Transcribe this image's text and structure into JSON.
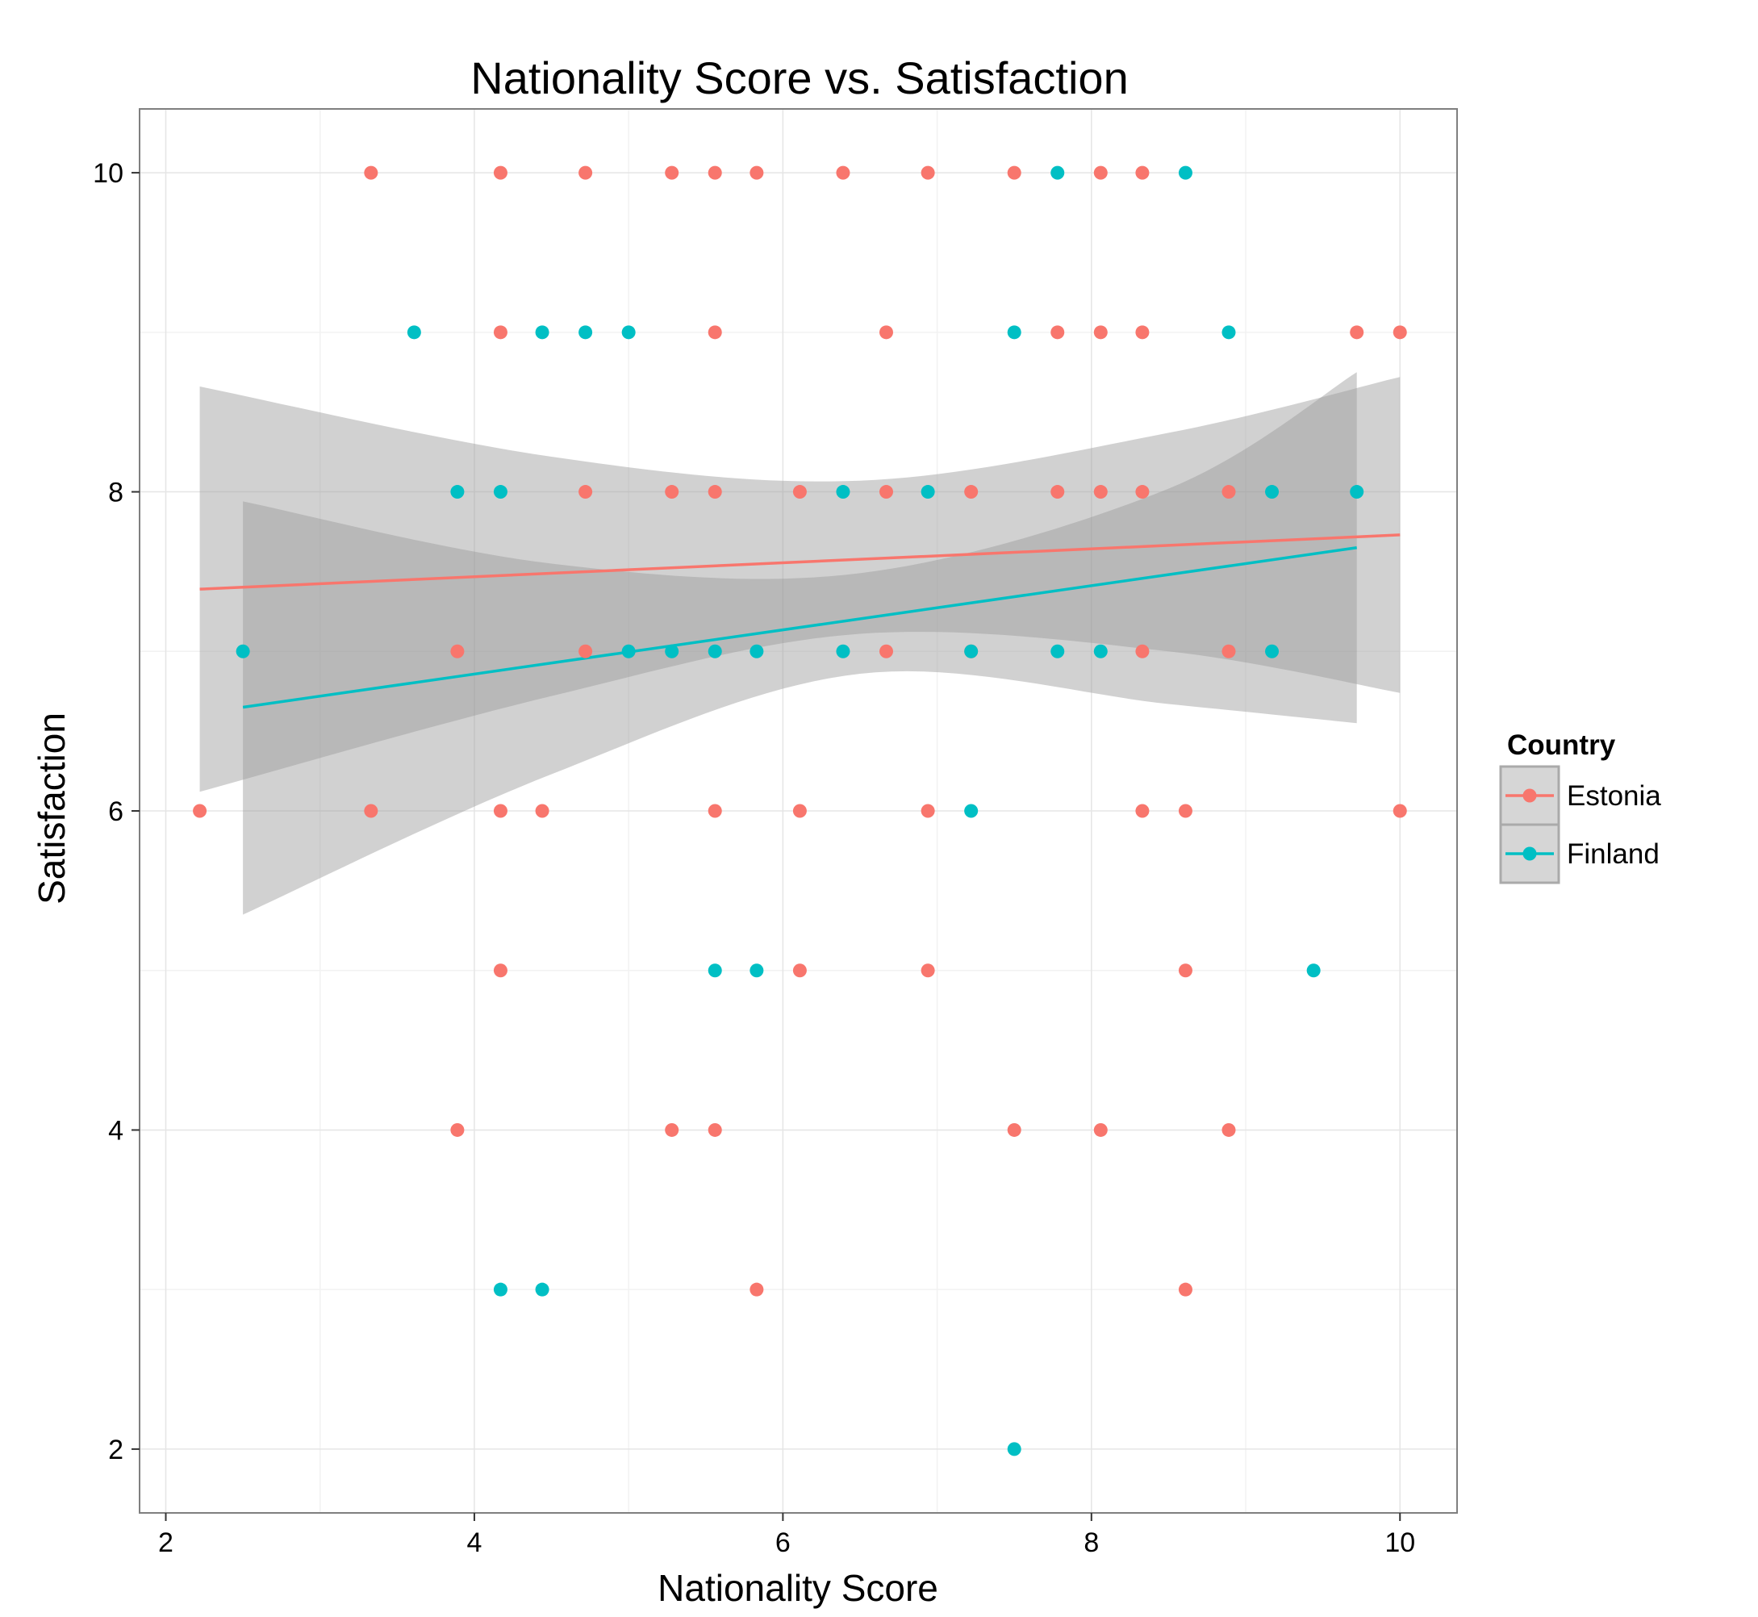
{
  "chart_data": {
    "type": "scatter",
    "title": "Nationality Score vs. Satisfaction",
    "xlabel": "Nationality Score",
    "ylabel": "Satisfaction",
    "xlim": [
      1.83,
      10.37
    ],
    "ylim": [
      1.6,
      10.4
    ],
    "x_ticks": [
      2,
      4,
      6,
      8,
      10
    ],
    "y_ticks": [
      2,
      4,
      6,
      8,
      10
    ],
    "grid": true,
    "legend": {
      "title": "Country",
      "placement": "right",
      "entries": [
        "Estonia",
        "Finland"
      ]
    },
    "colors": {
      "Estonia": "#F8766D",
      "Finland": "#00BFC4",
      "ribbon": "#999999",
      "panel_border": "#7f7f7f",
      "grid": "#e5e5e5"
    },
    "series": [
      {
        "name": "Estonia",
        "points": [
          [
            3.33,
            10
          ],
          [
            4.17,
            10
          ],
          [
            4.72,
            10
          ],
          [
            5.28,
            10
          ],
          [
            5.56,
            10
          ],
          [
            5.83,
            10
          ],
          [
            6.39,
            10
          ],
          [
            6.94,
            10
          ],
          [
            7.5,
            10
          ],
          [
            8.06,
            10
          ],
          [
            8.33,
            10
          ],
          [
            4.17,
            9
          ],
          [
            5.56,
            9
          ],
          [
            6.67,
            9
          ],
          [
            7.78,
            9
          ],
          [
            8.06,
            9
          ],
          [
            8.33,
            9
          ],
          [
            9.72,
            9
          ],
          [
            10.0,
            9
          ],
          [
            4.72,
            8
          ],
          [
            5.28,
            8
          ],
          [
            5.56,
            8
          ],
          [
            6.11,
            8
          ],
          [
            6.67,
            8
          ],
          [
            7.22,
            8
          ],
          [
            7.78,
            8
          ],
          [
            8.06,
            8
          ],
          [
            8.33,
            8
          ],
          [
            8.89,
            8
          ],
          [
            3.89,
            7
          ],
          [
            4.72,
            7
          ],
          [
            6.67,
            7
          ],
          [
            7.22,
            7
          ],
          [
            8.33,
            7
          ],
          [
            8.89,
            7
          ],
          [
            2.22,
            6
          ],
          [
            3.33,
            6
          ],
          [
            4.17,
            6
          ],
          [
            4.44,
            6
          ],
          [
            5.56,
            6
          ],
          [
            6.11,
            6
          ],
          [
            6.94,
            6
          ],
          [
            8.33,
            6
          ],
          [
            8.61,
            6
          ],
          [
            10.0,
            6
          ],
          [
            4.17,
            5
          ],
          [
            6.11,
            5
          ],
          [
            6.94,
            5
          ],
          [
            8.61,
            5
          ],
          [
            3.89,
            4
          ],
          [
            5.28,
            4
          ],
          [
            5.56,
            4
          ],
          [
            7.5,
            4
          ],
          [
            8.06,
            4
          ],
          [
            8.89,
            4
          ],
          [
            5.83,
            3
          ],
          [
            8.61,
            3
          ]
        ],
        "fit": {
          "x_range": [
            2.22,
            10.0
          ],
          "y_range": [
            7.39,
            7.73
          ],
          "band_upper": [
            [
              2.22,
              8.66
            ],
            [
              4.5,
              8.22
            ],
            [
              6.5,
              8.07
            ],
            [
              8.5,
              8.37
            ],
            [
              10.0,
              8.72
            ]
          ],
          "band_lower": [
            [
              2.22,
              6.12
            ],
            [
              4.5,
              6.72
            ],
            [
              6.5,
              7.11
            ],
            [
              8.5,
              7.0
            ],
            [
              10.0,
              6.74
            ]
          ]
        }
      },
      {
        "name": "Finland",
        "points": [
          [
            7.78,
            10
          ],
          [
            8.61,
            10
          ],
          [
            3.61,
            9
          ],
          [
            4.44,
            9
          ],
          [
            4.72,
            9
          ],
          [
            5.0,
            9
          ],
          [
            7.5,
            9
          ],
          [
            8.89,
            9
          ],
          [
            3.89,
            8
          ],
          [
            4.17,
            8
          ],
          [
            6.39,
            8
          ],
          [
            6.94,
            8
          ],
          [
            9.17,
            8
          ],
          [
            9.72,
            8
          ],
          [
            2.5,
            7
          ],
          [
            5.0,
            7
          ],
          [
            5.28,
            7
          ],
          [
            5.56,
            7
          ],
          [
            5.83,
            7
          ],
          [
            6.39,
            7
          ],
          [
            7.22,
            7
          ],
          [
            7.78,
            7
          ],
          [
            8.06,
            7
          ],
          [
            9.17,
            7
          ],
          [
            7.22,
            6
          ],
          [
            5.56,
            5
          ],
          [
            5.83,
            5
          ],
          [
            9.44,
            5
          ],
          [
            4.17,
            3
          ],
          [
            4.44,
            3
          ],
          [
            7.5,
            2
          ]
        ],
        "fit": {
          "x_range": [
            2.5,
            9.72
          ],
          "y_range": [
            6.65,
            7.65
          ],
          "band_upper": [
            [
              2.5,
              7.94
            ],
            [
              4.5,
              7.55
            ],
            [
              6.5,
              7.49
            ],
            [
              8.5,
              8.02
            ],
            [
              9.72,
              8.75
            ]
          ],
          "band_lower": [
            [
              2.5,
              5.35
            ],
            [
              4.5,
              6.23
            ],
            [
              6.5,
              6.86
            ],
            [
              8.5,
              6.67
            ],
            [
              9.72,
              6.55
            ]
          ]
        }
      }
    ]
  }
}
